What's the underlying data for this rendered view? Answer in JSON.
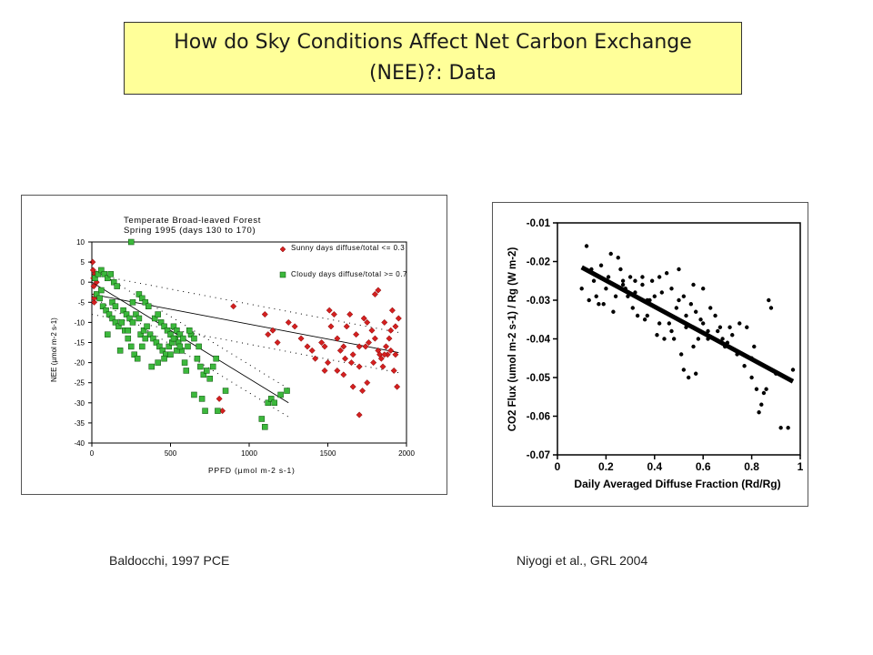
{
  "slide": {
    "title_line1": "How do Sky Conditions Affect Net Carbon Exchange",
    "title_line2": "(NEE)?: Data",
    "caption_left": "Baldocchi, 1997 PCE",
    "caption_right": "Niyogi et al., GRL 2004"
  },
  "colors": {
    "title_bg": "#ffff99",
    "sunny": "#d42020",
    "cloudy": "#3cb83c"
  },
  "chart_data": [
    {
      "type": "scatter",
      "title": "Temperate Broad-leaved Forest",
      "subtitle": "Spring 1995 (days 130 to 170)",
      "xlabel": "PPFD (µmol m-2 s-1)",
      "ylabel": "NEE (µmol m-2 s-1)",
      "xlim": [
        0,
        2000
      ],
      "ylim": [
        -40,
        10
      ],
      "x_ticks": [
        0,
        500,
        1000,
        1500,
        2000
      ],
      "y_ticks": [
        10,
        5,
        0,
        -5,
        -10,
        -15,
        -20,
        -25,
        -30,
        -35,
        -40
      ],
      "legend_placement": "top-right",
      "series": [
        {
          "name": "Sunny days diffuse/total <= 0.3",
          "marker": "diamond",
          "points": [
            [
              5,
              5
            ],
            [
              8,
              3
            ],
            [
              10,
              1
            ],
            [
              12,
              -1
            ],
            [
              15,
              -5
            ],
            [
              20,
              2
            ],
            [
              25,
              -3
            ],
            [
              15,
              -4
            ],
            [
              30,
              0
            ],
            [
              810,
              -29
            ],
            [
              830,
              -32
            ],
            [
              900,
              -6
            ],
            [
              1100,
              -8
            ],
            [
              1120,
              -13
            ],
            [
              1150,
              -12
            ],
            [
              1180,
              -15
            ],
            [
              1250,
              -10
            ],
            [
              1290,
              -11
            ],
            [
              1330,
              -14
            ],
            [
              1370,
              -16
            ],
            [
              1400,
              -17
            ],
            [
              1420,
              -19
            ],
            [
              1460,
              -15
            ],
            [
              1480,
              -22
            ],
            [
              1500,
              -20
            ],
            [
              1510,
              -7
            ],
            [
              1540,
              -8
            ],
            [
              1560,
              -14
            ],
            [
              1580,
              -17
            ],
            [
              1600,
              -16
            ],
            [
              1610,
              -19
            ],
            [
              1640,
              -8
            ],
            [
              1660,
              -18
            ],
            [
              1680,
              -13
            ],
            [
              1700,
              -21
            ],
            [
              1720,
              -27
            ],
            [
              1730,
              -9
            ],
            [
              1740,
              -16
            ],
            [
              1760,
              -15
            ],
            [
              1780,
              -12
            ],
            [
              1790,
              -20
            ],
            [
              1800,
              -3
            ],
            [
              1820,
              -17
            ],
            [
              1830,
              -18
            ],
            [
              1840,
              -19
            ],
            [
              1850,
              -21
            ],
            [
              1860,
              -10
            ],
            [
              1870,
              -16
            ],
            [
              1880,
              -18
            ],
            [
              1890,
              -14
            ],
            [
              1900,
              -12
            ],
            [
              1910,
              -7
            ],
            [
              1920,
              -22
            ],
            [
              1930,
              -11
            ],
            [
              1940,
              -26
            ],
            [
              1950,
              -9
            ],
            [
              1660,
              -26
            ],
            [
              1560,
              -22
            ],
            [
              1700,
              -33
            ],
            [
              1750,
              -25
            ],
            [
              1820,
              -2
            ],
            [
              1900,
              -17
            ],
            [
              1600,
              -23
            ],
            [
              1480,
              -16
            ],
            [
              1700,
              -16
            ],
            [
              1800,
              -14
            ],
            [
              1860,
              -18
            ],
            [
              1930,
              -18
            ],
            [
              1650,
              -20
            ],
            [
              1750,
              -10
            ],
            [
              1520,
              -11
            ],
            [
              1620,
              -11
            ]
          ]
        },
        {
          "name": "Cloudy days diffuse/total >= 0.7",
          "marker": "square",
          "points": [
            [
              20,
              1
            ],
            [
              40,
              2
            ],
            [
              60,
              3
            ],
            [
              80,
              2
            ],
            [
              100,
              1
            ],
            [
              120,
              2
            ],
            [
              140,
              0
            ],
            [
              160,
              -1
            ],
            [
              30,
              -3
            ],
            [
              50,
              -4
            ],
            [
              70,
              -6
            ],
            [
              90,
              -7
            ],
            [
              110,
              -8
            ],
            [
              130,
              -9
            ],
            [
              150,
              -10
            ],
            [
              170,
              -11
            ],
            [
              190,
              -10
            ],
            [
              210,
              -12
            ],
            [
              230,
              -14
            ],
            [
              250,
              -16
            ],
            [
              270,
              -18
            ],
            [
              290,
              -19
            ],
            [
              310,
              -13
            ],
            [
              330,
              -12
            ],
            [
              350,
              -11
            ],
            [
              370,
              -13
            ],
            [
              390,
              -14
            ],
            [
              410,
              -15
            ],
            [
              430,
              -16
            ],
            [
              450,
              -17
            ],
            [
              470,
              -18
            ],
            [
              490,
              -16
            ],
            [
              510,
              -15
            ],
            [
              530,
              -14
            ],
            [
              550,
              -15
            ],
            [
              570,
              -17
            ],
            [
              590,
              -20
            ],
            [
              610,
              -16
            ],
            [
              630,
              -13
            ],
            [
              650,
              -14
            ],
            [
              670,
              -19
            ],
            [
              690,
              -21
            ],
            [
              710,
              -23
            ],
            [
              730,
              -22
            ],
            [
              750,
              -24
            ],
            [
              770,
              -21
            ],
            [
              790,
              -19
            ],
            [
              800,
              -32
            ],
            [
              850,
              -27
            ],
            [
              1080,
              -34
            ],
            [
              1100,
              -36
            ],
            [
              1120,
              -30
            ],
            [
              1140,
              -29
            ],
            [
              1160,
              -30
            ],
            [
              1200,
              -28
            ],
            [
              1240,
              -27
            ],
            [
              250,
              10
            ],
            [
              300,
              -3
            ],
            [
              320,
              -4
            ],
            [
              340,
              -5
            ],
            [
              360,
              -6
            ],
            [
              400,
              -9
            ],
            [
              420,
              -8
            ],
            [
              440,
              -10
            ],
            [
              460,
              -11
            ],
            [
              480,
              -12
            ],
            [
              500,
              -13
            ],
            [
              520,
              -11
            ],
            [
              540,
              -12
            ],
            [
              560,
              -13
            ],
            [
              580,
              -14
            ],
            [
              200,
              -7
            ],
            [
              220,
              -8
            ],
            [
              240,
              -9
            ],
            [
              260,
              -10
            ],
            [
              280,
              -8
            ],
            [
              300,
              -9
            ],
            [
              320,
              -16
            ],
            [
              340,
              -14
            ],
            [
              380,
              -21
            ],
            [
              420,
              -20
            ],
            [
              460,
              -19
            ],
            [
              500,
              -18
            ],
            [
              540,
              -17
            ],
            [
              600,
              -22
            ],
            [
              650,
              -28
            ],
            [
              700,
              -29
            ],
            [
              720,
              -32
            ],
            [
              100,
              -13
            ],
            [
              180,
              -17
            ],
            [
              130,
              -5
            ],
            [
              60,
              -2
            ],
            [
              150,
              -6
            ],
            [
              520,
              -14
            ],
            [
              620,
              -12
            ],
            [
              560,
              -16
            ],
            [
              680,
              -16
            ],
            [
              260,
              -5
            ],
            [
              230,
              -12
            ]
          ]
        }
      ],
      "fit_lines": [
        {
          "series": "Sunny days diffuse/total <= 0.3",
          "x": [
            0,
            1950
          ],
          "y": [
            -3,
            -17.5
          ]
        },
        {
          "series": "Cloudy days diffuse/total >= 0.7",
          "x": [
            0,
            1250
          ],
          "y": [
            0,
            -30
          ]
        }
      ]
    },
    {
      "type": "scatter",
      "xlabel": "Daily Averaged Diffuse Fraction (Rd/Rg)",
      "ylabel": "CO2 Flux (umol m-2 s-1) / Rg (W m-2)",
      "xlim": [
        0,
        1
      ],
      "ylim": [
        -0.07,
        -0.01
      ],
      "x_ticks": [
        "0",
        "0.2",
        "0.4",
        "0.6",
        "0.8",
        "1"
      ],
      "y_ticks": [
        "-0.01",
        "-0.02",
        "-0.03",
        "-0.04",
        "-0.05",
        "-0.06",
        "-0.07"
      ],
      "points": [
        [
          0.12,
          -0.016
        ],
        [
          0.15,
          -0.025
        ],
        [
          0.18,
          -0.021
        ],
        [
          0.2,
          -0.027
        ],
        [
          0.22,
          -0.018
        ],
        [
          0.25,
          -0.019
        ],
        [
          0.27,
          -0.025
        ],
        [
          0.3,
          -0.024
        ],
        [
          0.32,
          -0.028
        ],
        [
          0.35,
          -0.026
        ],
        [
          0.37,
          -0.03
        ],
        [
          0.4,
          -0.029
        ],
        [
          0.42,
          -0.024
        ],
        [
          0.45,
          -0.023
        ],
        [
          0.47,
          -0.027
        ],
        [
          0.5,
          -0.03
        ],
        [
          0.52,
          -0.029
        ],
        [
          0.55,
          -0.031
        ],
        [
          0.57,
          -0.033
        ],
        [
          0.6,
          -0.036
        ],
        [
          0.62,
          -0.038
        ],
        [
          0.65,
          -0.034
        ],
        [
          0.67,
          -0.037
        ],
        [
          0.7,
          -0.041
        ],
        [
          0.72,
          -0.039
        ],
        [
          0.75,
          -0.036
        ],
        [
          0.77,
          -0.047
        ],
        [
          0.8,
          -0.05
        ],
        [
          0.82,
          -0.053
        ],
        [
          0.85,
          -0.054
        ],
        [
          0.87,
          -0.03
        ],
        [
          0.9,
          -0.049
        ],
        [
          0.92,
          -0.063
        ],
        [
          0.95,
          -0.063
        ],
        [
          0.97,
          -0.048
        ],
        [
          0.1,
          -0.027
        ],
        [
          0.13,
          -0.03
        ],
        [
          0.16,
          -0.029
        ],
        [
          0.19,
          -0.031
        ],
        [
          0.23,
          -0.033
        ],
        [
          0.26,
          -0.022
        ],
        [
          0.28,
          -0.027
        ],
        [
          0.31,
          -0.032
        ],
        [
          0.33,
          -0.034
        ],
        [
          0.36,
          -0.035
        ],
        [
          0.38,
          -0.03
        ],
        [
          0.41,
          -0.039
        ],
        [
          0.43,
          -0.028
        ],
        [
          0.46,
          -0.036
        ],
        [
          0.48,
          -0.04
        ],
        [
          0.51,
          -0.044
        ],
        [
          0.53,
          -0.037
        ],
        [
          0.54,
          -0.05
        ],
        [
          0.56,
          -0.042
        ],
        [
          0.58,
          -0.04
        ],
        [
          0.6,
          -0.027
        ],
        [
          0.63,
          -0.032
        ],
        [
          0.66,
          -0.038
        ],
        [
          0.68,
          -0.04
        ],
        [
          0.71,
          -0.037
        ],
        [
          0.74,
          -0.044
        ],
        [
          0.78,
          -0.037
        ],
        [
          0.81,
          -0.042
        ],
        [
          0.84,
          -0.057
        ],
        [
          0.86,
          -0.053
        ],
        [
          0.88,
          -0.032
        ],
        [
          0.83,
          -0.059
        ],
        [
          0.8,
          -0.045
        ],
        [
          0.69,
          -0.042
        ],
        [
          0.44,
          -0.04
        ],
        [
          0.35,
          -0.024
        ],
        [
          0.24,
          -0.029
        ],
        [
          0.14,
          -0.022
        ],
        [
          0.29,
          -0.029
        ],
        [
          0.39,
          -0.025
        ],
        [
          0.49,
          -0.032
        ],
        [
          0.59,
          -0.035
        ],
        [
          0.5,
          -0.022
        ],
        [
          0.53,
          -0.034
        ],
        [
          0.47,
          -0.038
        ],
        [
          0.57,
          -0.049
        ],
        [
          0.62,
          -0.04
        ],
        [
          0.42,
          -0.036
        ],
        [
          0.32,
          -0.025
        ],
        [
          0.21,
          -0.024
        ],
        [
          0.17,
          -0.031
        ],
        [
          0.27,
          -0.026
        ],
        [
          0.37,
          -0.034
        ],
        [
          0.52,
          -0.048
        ],
        [
          0.56,
          -0.026
        ]
      ],
      "fit_line": {
        "x": [
          0.1,
          0.97
        ],
        "y": [
          -0.0215,
          -0.051
        ]
      }
    }
  ]
}
